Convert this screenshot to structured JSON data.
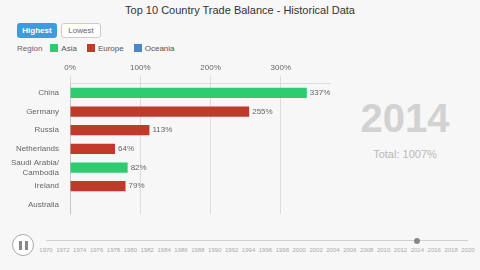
{
  "chart_data": {
    "type": "bar",
    "orientation": "horizontal",
    "title": "Top 10 Country Trade Balance - Historical Data",
    "categories": [
      "China",
      "Germany",
      "Russia",
      "Netherlands",
      "Saudi Arabia/\nCambodia",
      "Ireland",
      "Australia"
    ],
    "values": [
      337,
      255,
      113,
      64,
      82,
      79,
      0
    ],
    "value_labels": [
      "337%",
      "255%",
      "113%",
      "64%",
      "82%",
      "79%",
      null
    ],
    "colors": [
      "#2ecc71",
      "#c0392b",
      "#c0392b",
      "#c0392b",
      "#2ecc71",
      "#c0392b",
      "#c0392b"
    ],
    "data_labels": true,
    "xlim": [
      0,
      370
    ],
    "xticks": [
      {
        "value": 0,
        "label": "0%"
      },
      {
        "value": 100,
        "label": "100%"
      },
      {
        "value": 200,
        "label": "200%"
      },
      {
        "value": 300,
        "label": "300%"
      }
    ],
    "grid": true,
    "annotations": [
      {
        "text": "Highest",
        "color": "#3b9ddd"
      },
      {
        "text": "Lowest"
      },
      {
        "text": "Region"
      },
      {
        "text": "Asia",
        "color": "#2ecc71"
      },
      {
        "text": "Europe",
        "color": "#c0392b"
      },
      {
        "text": "Oceania",
        "color": "#4a86c8"
      },
      {
        "text": "2014",
        "color": "#cccccc"
      },
      {
        "text": "Total: 1007%",
        "color": "#b8b8b8"
      },
      {
        "text": "1970"
      },
      {
        "text": "1972"
      },
      {
        "text": "1974"
      },
      {
        "text": "1976"
      },
      {
        "text": "1978"
      },
      {
        "text": "1980"
      },
      {
        "text": "1982"
      },
      {
        "text": "1984"
      },
      {
        "text": "1986"
      },
      {
        "text": "1988"
      },
      {
        "text": "1990"
      },
      {
        "text": "1992"
      },
      {
        "text": "1994"
      },
      {
        "text": "1996"
      },
      {
        "text": "1998"
      },
      {
        "text": "2000"
      },
      {
        "text": "2002"
      },
      {
        "text": "2004"
      },
      {
        "text": "2006"
      },
      {
        "text": "2008"
      },
      {
        "text": "2010"
      },
      {
        "text": "2012"
      },
      {
        "text": "2014"
      },
      {
        "text": "2016"
      },
      {
        "text": "2018"
      },
      {
        "text": "2020"
      }
    ]
  }
}
